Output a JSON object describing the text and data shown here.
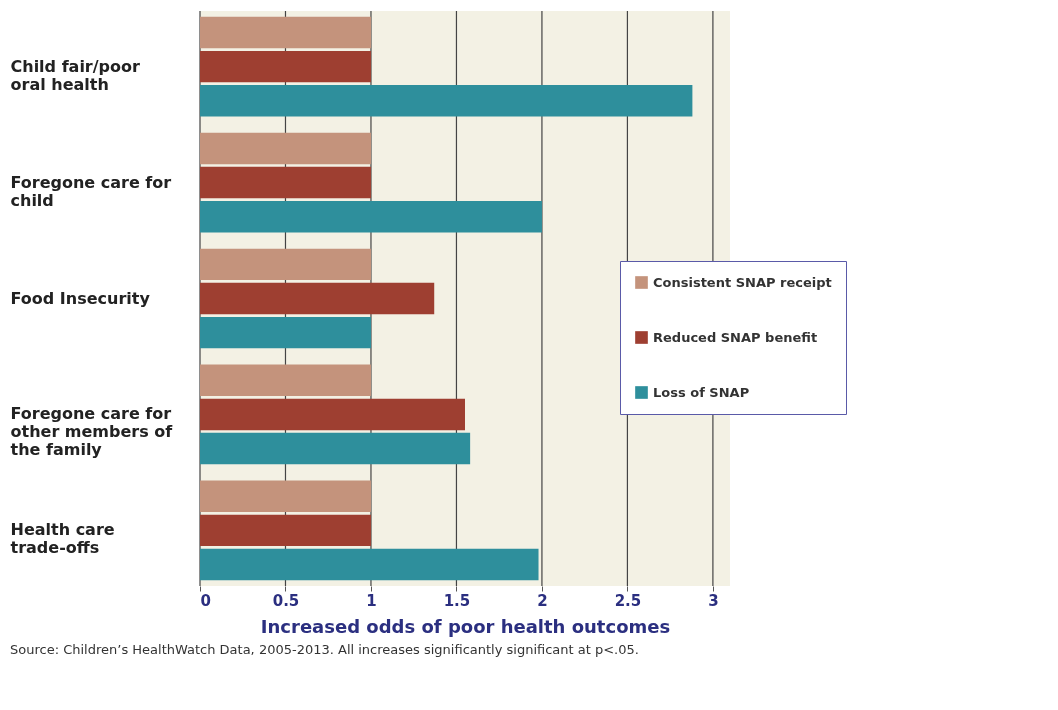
{
  "chart_data": {
    "type": "bar",
    "orientation": "horizontal",
    "categories": [
      "Child fair/poor oral health",
      "Foregone care for child",
      "Food Insecurity",
      "Foregone care for other members of the family",
      "Health care trade-offs"
    ],
    "series": [
      {
        "name": "Consistent SNAP receipt",
        "color": "#c4937c",
        "values": [
          1,
          1,
          1,
          1,
          1
        ]
      },
      {
        "name": "Reduced SNAP benefit",
        "color": "#9e3f31",
        "values": [
          1,
          1,
          1.37,
          1.55,
          1
        ]
      },
      {
        "name": "Loss of SNAP",
        "color": "#2e8f9c",
        "values": [
          2.88,
          2.0,
          1,
          1.58,
          1.98
        ]
      }
    ],
    "xlim": [
      0,
      3.1
    ],
    "xticks": [
      0,
      0.5,
      1,
      1.5,
      2,
      2.5,
      3
    ],
    "xlabel": "Increased odds of poor health outcomes",
    "grid": "x",
    "legend": "right",
    "annotations": [
      "Source: Children’s HealthWatch Data, 2005-2013. All increases significantly significant at p<.05."
    ]
  }
}
